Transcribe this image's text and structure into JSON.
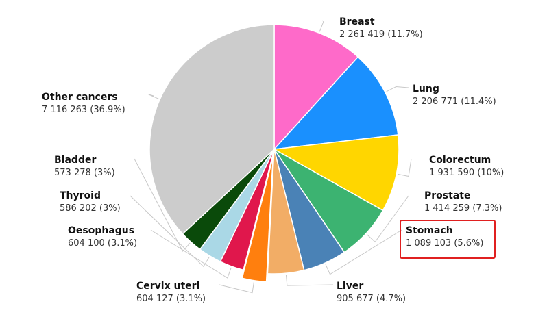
{
  "chart_data": {
    "type": "pie",
    "title": "",
    "slices": [
      {
        "name": "Breast",
        "value": 2261419,
        "percent": 11.7,
        "value_label": "2 261 419 (11.7%)",
        "color": "#fe6ac9"
      },
      {
        "name": "Lung",
        "value": 2206771,
        "percent": 11.4,
        "value_label": "2 206 771 (11.4%)",
        "color": "#1a90fe"
      },
      {
        "name": "Colorectum",
        "value": 1931590,
        "percent": 10,
        "value_label": "1 931 590 (10%)",
        "color": "#ffd600"
      },
      {
        "name": "Prostate",
        "value": 1414259,
        "percent": 7.3,
        "value_label": "1 414 259 (7.3%)",
        "color": "#3cb371"
      },
      {
        "name": "Stomach",
        "value": 1089103,
        "percent": 5.6,
        "value_label": "1 089 103 (5.6%)",
        "color": "#4a82b6",
        "highlighted": true
      },
      {
        "name": "Liver",
        "value": 905677,
        "percent": 4.7,
        "value_label": "905 677 (4.7%)",
        "color": "#f2ad66"
      },
      {
        "name": "Cervix uteri",
        "value": 604127,
        "percent": 3.1,
        "value_label": "604 127 (3.1%)",
        "color": "#ff7f0e",
        "exploded": true
      },
      {
        "name": "Oesophagus",
        "value": 604100,
        "percent": 3.1,
        "value_label": "604 100 (3.1%)",
        "color": "#e0174c"
      },
      {
        "name": "Thyroid",
        "value": 586202,
        "percent": 3,
        "value_label": "586 202 (3%)",
        "color": "#aad8e6"
      },
      {
        "name": "Bladder",
        "value": 573278,
        "percent": 3,
        "value_label": "573 278 (3%)",
        "color": "#0a4a0a"
      },
      {
        "name": "Other cancers",
        "value": 7116263,
        "percent": 36.9,
        "value_label": "7 116 263 (36.9%)",
        "color": "#cccccc"
      }
    ],
    "start_direction": "top",
    "rotation": "clockwise",
    "legend": "none",
    "highlight_color": "#e02020"
  }
}
